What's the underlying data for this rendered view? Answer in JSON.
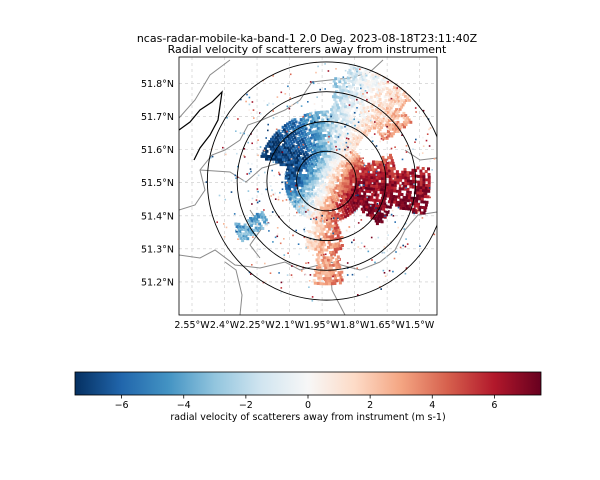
{
  "chart_data": {
    "type": "heatmap",
    "title": "ncas-radar-mobile-ka-band-1 2.0 Deg. 2023-08-18T23:11:40Z",
    "subtitle": "Radial velocity of scatterers away from instrument",
    "x_ticks": [
      {
        "value": -2.55,
        "label": "2.55°W"
      },
      {
        "value": -2.4,
        "label": "2.4°W"
      },
      {
        "value": -2.25,
        "label": "2.25°W"
      },
      {
        "value": -2.1,
        "label": "2.1°W"
      },
      {
        "value": -1.95,
        "label": "1.95°W"
      },
      {
        "value": -1.8,
        "label": "1.8°W"
      },
      {
        "value": -1.65,
        "label": "1.65°W"
      },
      {
        "value": -1.5,
        "label": "1.5°W"
      }
    ],
    "y_ticks": [
      {
        "value": 51.2,
        "label": "51.2°N"
      },
      {
        "value": 51.3,
        "label": "51.3°N"
      },
      {
        "value": 51.4,
        "label": "51.4°N"
      },
      {
        "value": 51.5,
        "label": "51.5°N"
      },
      {
        "value": 51.6,
        "label": "51.6°N"
      },
      {
        "value": 51.7,
        "label": "51.7°N"
      },
      {
        "value": 51.8,
        "label": "51.8°N"
      }
    ],
    "xlim": [
      -2.61,
      -1.42
    ],
    "ylim": [
      51.1,
      51.88
    ],
    "grid": true,
    "radar_center": {
      "lon": -1.93,
      "lat": 51.505
    },
    "range_rings_deg_lat": [
      0.09,
      0.18,
      0.27,
      0.36
    ],
    "colorbar": {
      "label": "radial velocity of scatterers away from instrument (m s-1)",
      "min": -7.5,
      "max": 7.5,
      "ticks": [
        -6,
        -4,
        -2,
        0,
        2,
        4,
        6
      ],
      "tick_labels": [
        "−6",
        "−4",
        "−2",
        "0",
        "2",
        "4",
        "6"
      ],
      "colormap": "RdBu_r"
    }
  }
}
